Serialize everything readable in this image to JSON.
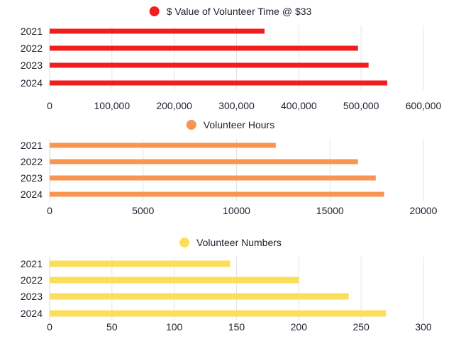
{
  "charts": [
    {
      "type": "bar",
      "orientation": "horizontal",
      "legend": "$ Value of Volunteer Time @ $33",
      "color": "#f21d1d",
      "categories": [
        "2021",
        "2022",
        "2023",
        "2024"
      ],
      "values": [
        345000,
        495000,
        512000,
        542000
      ],
      "xlim": [
        0,
        600000
      ],
      "xticks": [
        0,
        100000,
        200000,
        300000,
        400000,
        500000,
        600000
      ],
      "xtick_labels": [
        "0",
        "100,000",
        "200,000",
        "300,000",
        "400,000",
        "500,000",
        "600,000"
      ],
      "grid": true,
      "legend_position": "top-center"
    },
    {
      "type": "bar",
      "orientation": "horizontal",
      "legend": "Volunteer Hours",
      "color": "#f99451",
      "categories": [
        "2021",
        "2022",
        "2023",
        "2024"
      ],
      "values": [
        12100,
        16500,
        17450,
        17900
      ],
      "xlim": [
        0,
        20000
      ],
      "xticks": [
        0,
        5000,
        10000,
        15000,
        20000
      ],
      "xtick_labels": [
        "0",
        "5000",
        "10000",
        "15000",
        "20000"
      ],
      "grid": true,
      "legend_position": "top-center"
    },
    {
      "type": "bar",
      "orientation": "horizontal",
      "legend": "Volunteer Numbers",
      "color": "#fbde5c",
      "categories": [
        "2021",
        "2022",
        "2023",
        "2024"
      ],
      "values": [
        145,
        200,
        240,
        270
      ],
      "xlim": [
        0,
        300
      ],
      "xticks": [
        0,
        50,
        100,
        150,
        200,
        250,
        300
      ],
      "xtick_labels": [
        "0",
        "50",
        "100",
        "150",
        "200",
        "250",
        "300"
      ],
      "grid": true,
      "legend_position": "top-center"
    }
  ]
}
